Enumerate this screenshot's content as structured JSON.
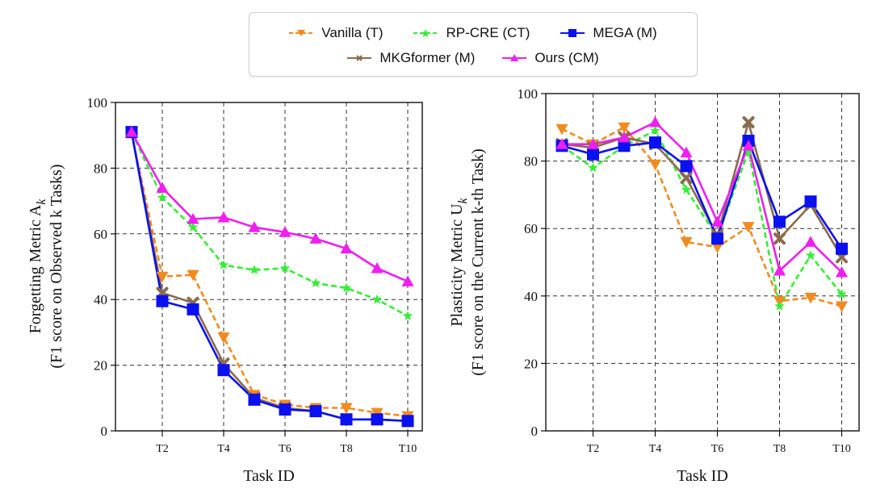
{
  "legend": {
    "items": [
      {
        "key": "vanilla",
        "label": "Vanilla (T)"
      },
      {
        "key": "rpcre",
        "label": "RP-CRE (CT)"
      },
      {
        "key": "mega",
        "label": "MEGA (M)"
      },
      {
        "key": "mkg",
        "label": "MKGformer (M)"
      },
      {
        "key": "ours",
        "label": "Ours (CM)"
      }
    ]
  },
  "chart_data": [
    {
      "type": "line",
      "title": "",
      "xlabel": "Task ID",
      "ylabel_line1": "Forgetting Metric A",
      "ylabel_sub": "k",
      "ylabel_line2": "(F1 score on Observed k Tasks)",
      "x": [
        "T1",
        "T2",
        "T3",
        "T4",
        "T5",
        "T6",
        "T7",
        "T8",
        "T9",
        "T10"
      ],
      "xtick_labels": [
        "T2",
        "T4",
        "T6",
        "T8",
        "T10"
      ],
      "yticks": [
        0,
        20,
        40,
        60,
        80,
        100
      ],
      "ylim": [
        0,
        100
      ],
      "grid": true,
      "series": [
        {
          "key": "vanilla",
          "name": "Vanilla (T)",
          "color": "#f28a1e",
          "dash": true,
          "marker": "triangle-down",
          "values": [
            90.5,
            47,
            47.5,
            28.5,
            11,
            8,
            7,
            7,
            5.5,
            4.5
          ]
        },
        {
          "key": "rpcre",
          "name": "RP-CRE (CT)",
          "color": "#33ee33",
          "dash": true,
          "marker": "star",
          "values": [
            91,
            71,
            62,
            50.5,
            49,
            49.5,
            45,
            43.5,
            40,
            35
          ]
        },
        {
          "key": "mkg",
          "name": "MKGformer (M)",
          "color": "#8b6a4e",
          "dash": false,
          "marker": "x",
          "values": [
            91,
            42,
            39,
            20.5,
            10,
            7,
            6,
            3.5,
            3.5,
            3
          ]
        },
        {
          "key": "mega",
          "name": "MEGA (M)",
          "color": "#0a10f0",
          "dash": false,
          "marker": "square",
          "values": [
            91,
            39.5,
            37,
            18.5,
            9.5,
            6.5,
            6,
            3.5,
            3.5,
            3
          ]
        },
        {
          "key": "ours",
          "name": "Ours (CM)",
          "color": "#f01ef0",
          "dash": false,
          "marker": "triangle-up",
          "values": [
            91,
            74,
            64.5,
            65,
            62,
            60.5,
            58.5,
            55.5,
            49.5,
            45.5
          ]
        }
      ]
    },
    {
      "type": "line",
      "title": "",
      "xlabel": "Task ID",
      "ylabel_line1": "Plasticity Metric U",
      "ylabel_sub": "k",
      "ylabel_line2": "(F1 score on the Current k-th Task)",
      "x": [
        "T1",
        "T2",
        "T3",
        "T4",
        "T5",
        "T6",
        "T7",
        "T8",
        "T9",
        "T10"
      ],
      "xtick_labels": [
        "T2",
        "T4",
        "T6",
        "T8",
        "T10"
      ],
      "yticks": [
        0,
        20,
        40,
        60,
        80,
        100
      ],
      "ylim": [
        0,
        100
      ],
      "grid": true,
      "series": [
        {
          "key": "vanilla",
          "name": "Vanilla (T)",
          "color": "#f28a1e",
          "dash": true,
          "marker": "triangle-down",
          "values": [
            89.5,
            85,
            90,
            79,
            56,
            54.5,
            60.5,
            38.5,
            39.5,
            37
          ]
        },
        {
          "key": "rpcre",
          "name": "RP-CRE (CT)",
          "color": "#33ee33",
          "dash": true,
          "marker": "star",
          "values": [
            84.5,
            78,
            84.5,
            89,
            71.5,
            57.5,
            83,
            37,
            52,
            40.5
          ]
        },
        {
          "key": "mkg",
          "name": "MKGformer (M)",
          "color": "#8b6a4e",
          "dash": false,
          "marker": "x",
          "values": [
            85,
            84,
            87,
            85,
            75,
            58,
            91.5,
            57,
            67,
            51.5
          ]
        },
        {
          "key": "mega",
          "name": "MEGA (M)",
          "color": "#0a10f0",
          "dash": false,
          "marker": "square",
          "values": [
            84.5,
            82,
            84.5,
            85.5,
            78.5,
            57,
            86,
            62,
            68,
            54
          ]
        },
        {
          "key": "ours",
          "name": "Ours (CM)",
          "color": "#f01ef0",
          "dash": false,
          "marker": "triangle-up",
          "values": [
            85,
            85,
            87,
            91.5,
            82.5,
            62,
            84.5,
            47.5,
            56,
            47
          ]
        }
      ]
    }
  ]
}
